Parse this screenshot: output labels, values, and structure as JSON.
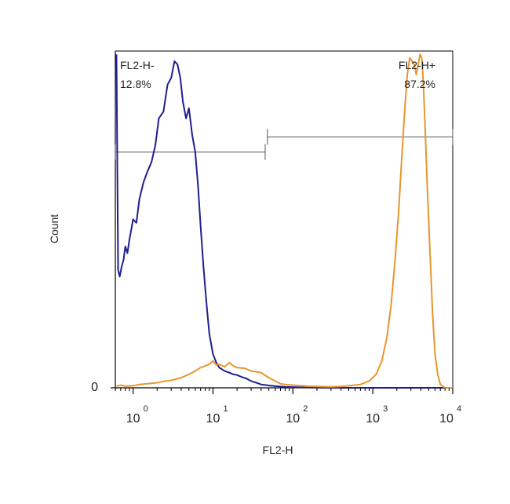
{
  "chart_data": {
    "type": "line",
    "title": "",
    "xlabel": "FL2-H",
    "ylabel": "Count",
    "x_scale": "log",
    "xlim": [
      0.6,
      10000
    ],
    "ylim": [
      0,
      1
    ],
    "x_ticks": [
      {
        "base": "10",
        "exp": "0",
        "value": 1
      },
      {
        "base": "10",
        "exp": "1",
        "value": 10
      },
      {
        "base": "10",
        "exp": "2",
        "value": 100
      },
      {
        "base": "10",
        "exp": "3",
        "value": 1000
      },
      {
        "base": "10",
        "exp": "4",
        "value": 10000
      }
    ],
    "y_ticks": [
      {
        "label": "0",
        "value": 0
      }
    ],
    "grid": false,
    "legend": "none",
    "gates": [
      {
        "name": "FL2-H-",
        "percent": "12.8%",
        "range": [
          0.6,
          45
        ],
        "level": 0.7
      },
      {
        "name": "FL2-H+",
        "percent": "87.2%",
        "range": [
          48,
          10000
        ],
        "level": 0.745
      }
    ],
    "series": [
      {
        "color": "#1f1f8f",
        "x": [
          0.62,
          0.65,
          0.68,
          0.72,
          0.76,
          0.8,
          0.85,
          0.9,
          0.95,
          1.0,
          1.1,
          1.2,
          1.35,
          1.5,
          1.7,
          1.9,
          2.1,
          2.4,
          2.7,
          3.0,
          3.3,
          3.6,
          3.9,
          4.2,
          4.6,
          5.0,
          5.5,
          6.0,
          6.5,
          7.0,
          7.6,
          8.3,
          9.0,
          10,
          11,
          12,
          14,
          16,
          18,
          20,
          23,
          26,
          30,
          35,
          40,
          50,
          60,
          80,
          100,
          150,
          300,
          1000,
          3000,
          10000
        ],
        "y": [
          0.99,
          0.35,
          0.33,
          0.36,
          0.38,
          0.42,
          0.4,
          0.44,
          0.47,
          0.5,
          0.49,
          0.56,
          0.61,
          0.64,
          0.67,
          0.72,
          0.8,
          0.82,
          0.9,
          0.92,
          0.97,
          0.96,
          0.92,
          0.85,
          0.8,
          0.83,
          0.75,
          0.7,
          0.6,
          0.48,
          0.36,
          0.25,
          0.16,
          0.1,
          0.075,
          0.06,
          0.05,
          0.045,
          0.04,
          0.038,
          0.032,
          0.028,
          0.02,
          0.015,
          0.01,
          0.007,
          0.005,
          0.003,
          0.002,
          0.001,
          0.0,
          0.0,
          0.0,
          0.0
        ]
      },
      {
        "color": "#e8962e",
        "x": [
          0.62,
          0.7,
          0.8,
          1.0,
          1.2,
          1.5,
          2.0,
          2.5,
          3.0,
          4.0,
          5.0,
          6.0,
          7.0,
          8.0,
          9.0,
          10,
          11,
          12,
          14,
          16,
          18,
          20,
          25,
          30,
          40,
          50,
          60,
          70,
          80,
          100,
          150,
          200,
          300,
          400,
          500,
          700,
          900,
          1100,
          1300,
          1500,
          1700,
          1900,
          2100,
          2300,
          2500,
          2700,
          2900,
          3100,
          3300,
          3500,
          3700,
          3900,
          4100,
          4300,
          4500,
          4800,
          5200,
          5600,
          6000,
          6500,
          7000,
          8000,
          9000,
          10000
        ],
        "y": [
          0.005,
          0.008,
          0.005,
          0.006,
          0.01,
          0.012,
          0.015,
          0.02,
          0.022,
          0.03,
          0.04,
          0.05,
          0.06,
          0.065,
          0.07,
          0.08,
          0.068,
          0.07,
          0.062,
          0.075,
          0.065,
          0.06,
          0.058,
          0.05,
          0.045,
          0.03,
          0.02,
          0.012,
          0.01,
          0.008,
          0.005,
          0.004,
          0.003,
          0.004,
          0.006,
          0.01,
          0.02,
          0.04,
          0.08,
          0.15,
          0.25,
          0.38,
          0.52,
          0.68,
          0.82,
          0.93,
          0.98,
          0.97,
          0.96,
          0.93,
          0.96,
          0.99,
          0.98,
          0.9,
          0.78,
          0.6,
          0.4,
          0.22,
          0.1,
          0.04,
          0.01,
          0.0,
          0.0,
          0.0
        ]
      }
    ]
  }
}
